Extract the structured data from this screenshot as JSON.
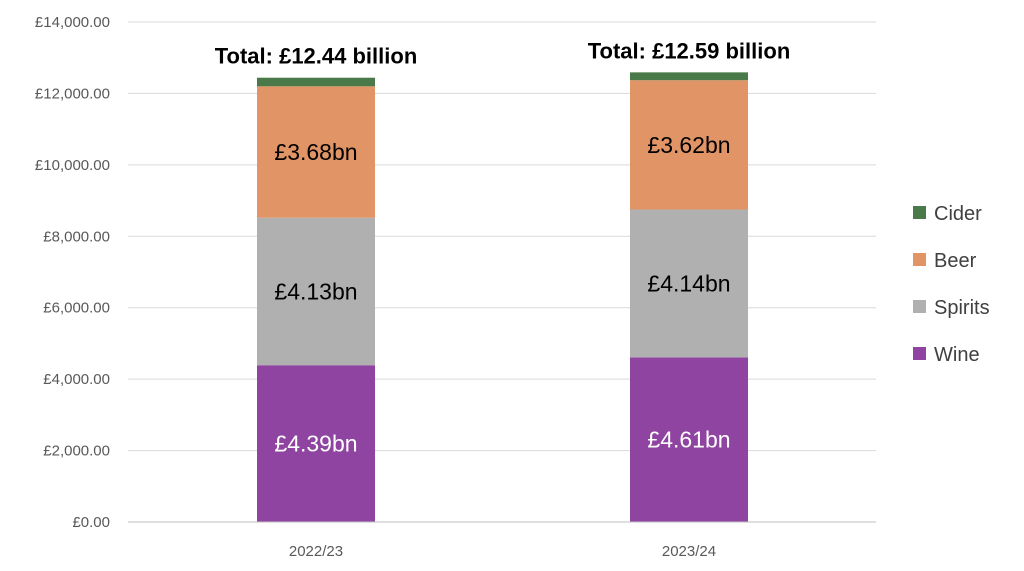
{
  "chart_data": {
    "type": "bar",
    "stacked": true,
    "categories": [
      "2022/23",
      "2023/24"
    ],
    "series": [
      {
        "name": "Wine",
        "color": "#8E44A0",
        "label_color": "#ffffff",
        "values": [
          4390,
          4610
        ],
        "labels": [
          "£4.39bn",
          "£4.61bn"
        ]
      },
      {
        "name": "Spirits",
        "color": "#B0B0B0",
        "label_color": "#000000",
        "values": [
          4130,
          4140
        ],
        "labels": [
          "£4.13bn",
          "£4.14bn"
        ]
      },
      {
        "name": "Beer",
        "color": "#E19566",
        "label_color": "#000000",
        "values": [
          3680,
          3620
        ],
        "labels": [
          "£3.68bn",
          "£3.62bn"
        ]
      },
      {
        "name": "Cider",
        "color": "#4A7A4A",
        "label_color": "#000000",
        "values": [
          240,
          220
        ],
        "labels": [
          "",
          ""
        ]
      }
    ],
    "totals": [
      "Total: £12.44 billion",
      "Total: £12.59 billion"
    ],
    "ylim": [
      0,
      14000
    ],
    "yticks": [
      0,
      2000,
      4000,
      6000,
      8000,
      10000,
      12000,
      14000
    ],
    "ytick_labels": [
      "£0.00",
      "£2,000.00",
      "£4,000.00",
      "£6,000.00",
      "£8,000.00",
      "£10,000.00",
      "£12,000.00",
      "£14,000.00"
    ],
    "grid": true,
    "legend_position": "right",
    "legend_order": [
      "Cider",
      "Beer",
      "Spirits",
      "Wine"
    ]
  }
}
